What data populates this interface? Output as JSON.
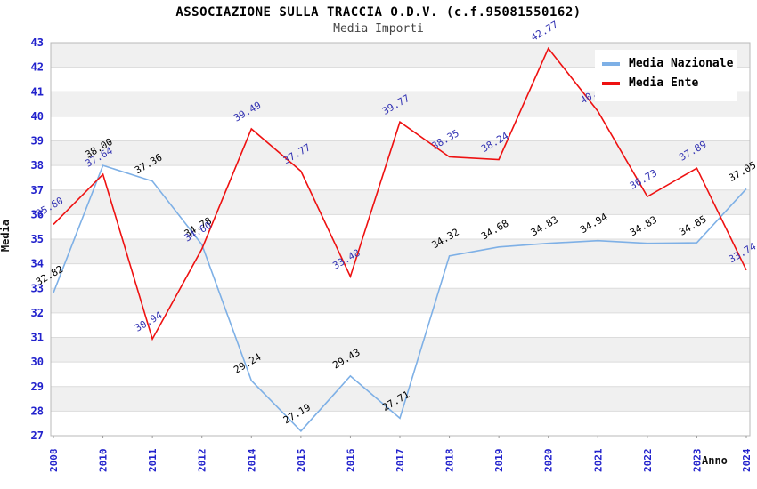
{
  "chart": {
    "title": "ASSOCIAZIONE SULLA TRACCIA O.D.V. (c.f.95081550162)",
    "subtitle": "Media Importi",
    "ylabel": "Media",
    "xlabel": "Anno"
  },
  "chart_data": {
    "type": "line",
    "x": [
      "2008",
      "2010",
      "2011",
      "2012",
      "2014",
      "2015",
      "2016",
      "2017",
      "2018",
      "2019",
      "2020",
      "2021",
      "2022",
      "2023",
      "2024"
    ],
    "series": [
      {
        "name": "Media Nazionale",
        "color": "#7EB0E6",
        "label_color": "#000000",
        "values": [
          32.82,
          38.0,
          37.36,
          34.78,
          29.24,
          27.19,
          29.43,
          27.71,
          34.32,
          34.68,
          34.83,
          34.94,
          34.83,
          34.85,
          37.05
        ]
      },
      {
        "name": "Media Ente",
        "color": "#EE1111",
        "label_color": "#3333B3",
        "values": [
          35.6,
          37.64,
          30.94,
          34.6,
          39.49,
          37.77,
          33.48,
          39.77,
          38.35,
          38.24,
          42.77,
          40.21,
          36.73,
          37.89,
          33.74
        ]
      }
    ],
    "ylim": [
      27,
      43
    ],
    "y_tick_step": 1,
    "grid": "alternating-horizontal-bands",
    "legend_position": "top-right",
    "tick_color": "#2222CC",
    "band_color": "#F0F0F0",
    "gridline_color": "#DCDCDC",
    "frame_color": "#B8B8B8"
  }
}
